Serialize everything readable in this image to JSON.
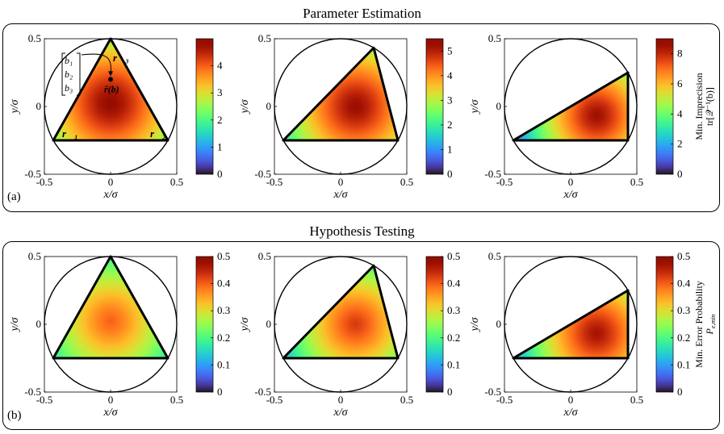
{
  "figure": {
    "sections": [
      {
        "title": "Parameter Estimation",
        "label": "(a)"
      },
      {
        "title": "Hypothesis Testing",
        "label": "(b)"
      }
    ],
    "annotations": {
      "vec_r1": "r⃗₁",
      "vec_r2": "r⃗₂",
      "vec_r3": "r⃗₃",
      "b1": "b₁",
      "b2": "b₂",
      "b3": "b₃",
      "estimate": "r̂(b)"
    },
    "colorbar_labels": {
      "a_line1": "Min. Imprecision",
      "a_line2": "tr[𝒬⁻¹(b)]",
      "b_line1": "Min. Error Probability",
      "b_line2": "P",
      "b_line2_sub": "e,min"
    },
    "colormap": "turbo"
  },
  "chart_data": [
    {
      "type": "heatmap",
      "panel": "a1",
      "xlabel": "x/σ",
      "ylabel": "y/σ",
      "xlim": [
        -0.5,
        0.5
      ],
      "ylim": [
        -0.5,
        0.5
      ],
      "xticks": [
        -0.5,
        0,
        0.5
      ],
      "yticks": [
        -0.5,
        0,
        0.5
      ],
      "circle_radius": 0.5,
      "triangle": [
        [
          -0.433,
          -0.25
        ],
        [
          0.433,
          -0.25
        ],
        [
          0,
          0.5
        ]
      ],
      "field_max": 4.9,
      "field_min": 2,
      "colorbar": {
        "min": 0,
        "max": 5,
        "ticks": [
          0,
          1,
          2,
          3,
          4
        ]
      }
    },
    {
      "type": "heatmap",
      "panel": "a2",
      "xlabel": "x/σ",
      "ylabel": "y/σ",
      "xlim": [
        -0.5,
        0.5
      ],
      "ylim": [
        -0.5,
        0.5
      ],
      "xticks": [
        -0.5,
        0,
        0.5
      ],
      "yticks": [
        -0.5,
        0,
        0.5
      ],
      "circle_radius": 0.5,
      "triangle": [
        [
          -0.433,
          -0.25
        ],
        [
          0.433,
          -0.25
        ],
        [
          0.25,
          0.433
        ]
      ],
      "field_max": 5.3,
      "field_min": 2,
      "colorbar": {
        "min": 0,
        "max": 5.5,
        "ticks": [
          0,
          1,
          2,
          3,
          4,
          5
        ]
      }
    },
    {
      "type": "heatmap",
      "panel": "a3",
      "xlabel": "x/σ",
      "ylabel": "y/σ",
      "xlim": [
        -0.5,
        0.5
      ],
      "ylim": [
        -0.5,
        0.5
      ],
      "xticks": [
        -0.5,
        0,
        0.5
      ],
      "yticks": [
        -0.5,
        0,
        0.5
      ],
      "circle_radius": 0.5,
      "triangle": [
        [
          -0.433,
          -0.25
        ],
        [
          0.433,
          -0.25
        ],
        [
          0.433,
          0.25
        ]
      ],
      "field_max": 8.6,
      "field_min": 2,
      "colorbar": {
        "min": 0,
        "max": 9,
        "ticks": [
          0,
          2,
          4,
          6,
          8
        ]
      }
    },
    {
      "type": "heatmap",
      "panel": "b1",
      "xlabel": "x/σ",
      "ylabel": "y/σ",
      "xlim": [
        -0.5,
        0.5
      ],
      "ylim": [
        -0.5,
        0.5
      ],
      "xticks": [
        -0.5,
        0,
        0.5
      ],
      "yticks": [
        -0.5,
        0,
        0.5
      ],
      "circle_radius": 0.5,
      "triangle": [
        [
          -0.433,
          -0.25
        ],
        [
          0.433,
          -0.25
        ],
        [
          0,
          0.5
        ]
      ],
      "field_max": 0.4,
      "field_min": 0.13,
      "colorbar": {
        "min": 0,
        "max": 0.5,
        "ticks": [
          0,
          0.1,
          0.2,
          0.3,
          0.4,
          0.5
        ]
      }
    },
    {
      "type": "heatmap",
      "panel": "b2",
      "xlabel": "x/σ",
      "ylabel": "y/σ",
      "xlim": [
        -0.5,
        0.5
      ],
      "ylim": [
        -0.5,
        0.5
      ],
      "xticks": [
        -0.5,
        0,
        0.5
      ],
      "yticks": [
        -0.5,
        0,
        0.5
      ],
      "circle_radius": 0.5,
      "triangle": [
        [
          -0.433,
          -0.25
        ],
        [
          0.433,
          -0.25
        ],
        [
          0.25,
          0.433
        ]
      ],
      "field_max": 0.43,
      "field_min": 0.13,
      "colorbar": {
        "min": 0,
        "max": 0.5,
        "ticks": [
          0,
          0.1,
          0.2,
          0.3,
          0.4,
          0.5
        ]
      }
    },
    {
      "type": "heatmap",
      "panel": "b3",
      "xlabel": "x/σ",
      "ylabel": "y/σ",
      "xlim": [
        -0.5,
        0.5
      ],
      "ylim": [
        -0.5,
        0.5
      ],
      "xticks": [
        -0.5,
        0,
        0.5
      ],
      "yticks": [
        -0.5,
        0,
        0.5
      ],
      "circle_radius": 0.5,
      "triangle": [
        [
          -0.433,
          -0.25
        ],
        [
          0.433,
          -0.25
        ],
        [
          0.433,
          0.25
        ]
      ],
      "field_max": 0.47,
      "field_min": 0.14,
      "colorbar": {
        "min": 0,
        "max": 0.5,
        "ticks": [
          0,
          0.1,
          0.2,
          0.3,
          0.4,
          0.5
        ]
      }
    }
  ]
}
